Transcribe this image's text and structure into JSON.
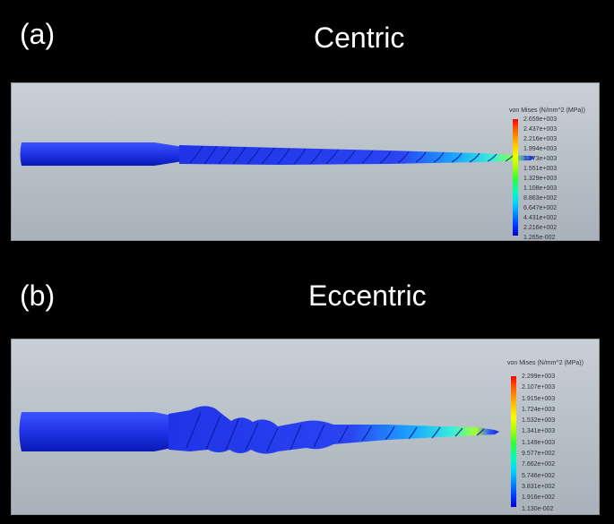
{
  "panels": [
    {
      "label": "(a)",
      "title": "Centric",
      "legend": {
        "title": "von Mises (N/mm^2 (MPa))",
        "values": [
          "2.659e+003",
          "2.437e+003",
          "2.216e+003",
          "1.994e+003",
          "1.773e+003",
          "1.551e+003",
          "1.329e+003",
          "1.108e+003",
          "8.863e+002",
          "6.647e+002",
          "4.431e+002",
          "2.216e+002",
          "1.265e-002"
        ]
      }
    },
    {
      "label": "(b)",
      "title": "Eccentric",
      "legend": {
        "title": "von Mises (N/mm^2 (MPa))",
        "values": [
          "2.299e+003",
          "2.107e+003",
          "1.915e+003",
          "1.724e+003",
          "1.532e+003",
          "1.341e+003",
          "1.149e+003",
          "9.577e+002",
          "7.662e+002",
          "5.746e+002",
          "3.831e+002",
          "1.916e+002",
          "1.130e-002"
        ]
      }
    }
  ],
  "colors": {
    "background": "#000000",
    "part": "#1c2fe0",
    "max_stress": "#ff0000",
    "min_stress": "#0000d0"
  }
}
